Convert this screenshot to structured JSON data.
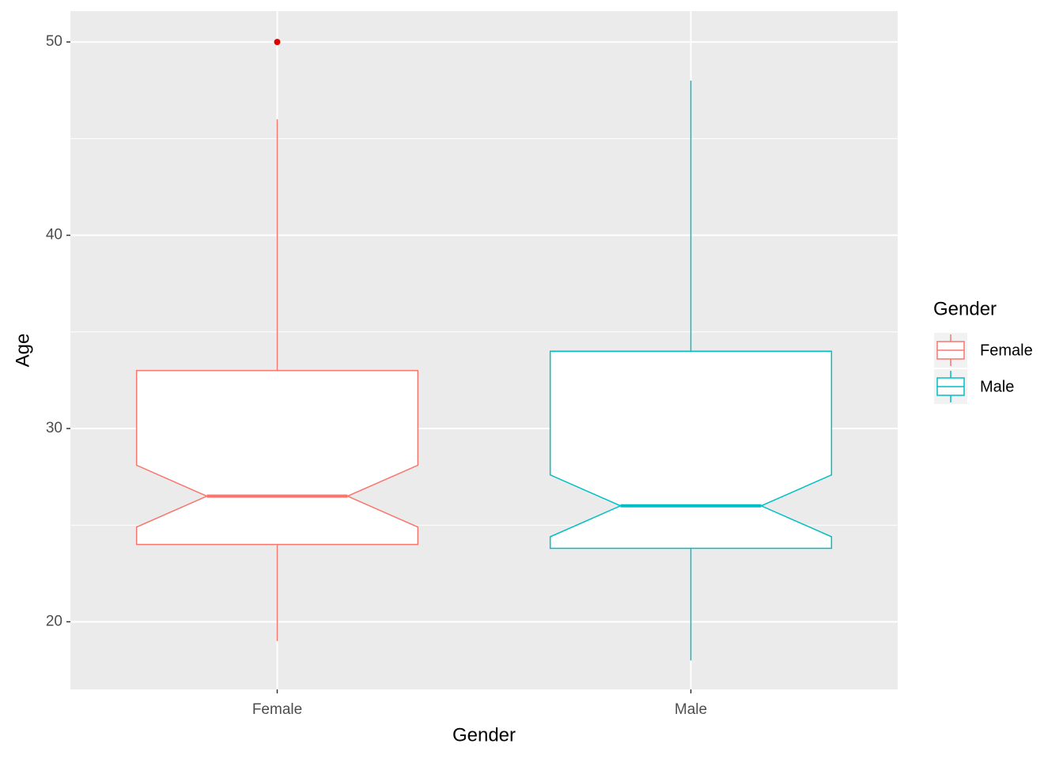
{
  "chart_data": {
    "type": "boxplot",
    "x_label": "Gender",
    "y_label": "Age",
    "legend_title": "Gender",
    "categories": [
      "Female",
      "Male"
    ],
    "series": [
      {
        "name": "Female",
        "color": "#f8766d",
        "whisker_low": 19,
        "q1": 24,
        "notch_low": 24.9,
        "median": 26.5,
        "notch_high": 28.1,
        "q3": 33,
        "whisker_high": 46,
        "outliers": [
          50
        ]
      },
      {
        "name": "Male",
        "color": "#00bfc4",
        "whisker_low": 18,
        "q1": 23.8,
        "notch_low": 24.4,
        "median": 26,
        "notch_high": 27.6,
        "q3": 34,
        "whisker_high": 48,
        "outliers": []
      }
    ],
    "outlier_color": "#e00000",
    "ylim": [
      16.5,
      51.6
    ],
    "yticks": [
      20,
      30,
      40,
      50
    ],
    "minor_yticks": [
      25,
      35,
      45
    ],
    "grid": true,
    "legend": "right"
  }
}
